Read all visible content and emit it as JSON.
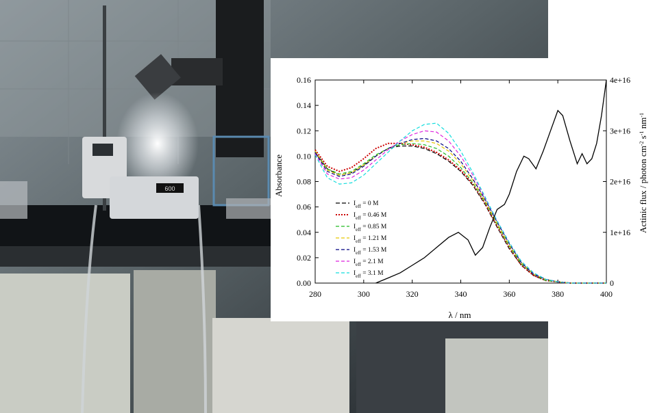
{
  "photo": {
    "display_label": "600"
  },
  "chart_data": {
    "type": "line",
    "xlabel": "λ / nm",
    "ylabel": "Absorbance",
    "y2label": "Actinic flux / photon cm-2 s-1 nm-1",
    "xlim": [
      280,
      400
    ],
    "ylim": [
      0,
      0.16
    ],
    "y2lim": [
      0,
      4e+16
    ],
    "x_ticks": [
      "280",
      "300",
      "320",
      "340",
      "360",
      "380",
      "400"
    ],
    "y_ticks": [
      "0.00",
      "0.02",
      "0.04",
      "0.06",
      "0.08",
      "0.10",
      "0.12",
      "0.14",
      "0.16"
    ],
    "y2_ticks": [
      "0",
      "1e+16",
      "2e+16",
      "3e+16",
      "4e+16"
    ],
    "x": [
      280,
      285,
      290,
      295,
      300,
      305,
      310,
      315,
      320,
      325,
      330,
      335,
      340,
      345,
      350,
      355,
      360,
      365,
      370,
      375,
      380,
      385,
      390,
      395,
      400
    ],
    "series": [
      {
        "name": "Ieff = 0 M",
        "color": "#000000",
        "dash": "6 3",
        "axis": "left",
        "values": [
          0.103,
          0.09,
          0.085,
          0.087,
          0.093,
          0.1,
          0.106,
          0.108,
          0.108,
          0.106,
          0.102,
          0.096,
          0.088,
          0.077,
          0.062,
          0.044,
          0.027,
          0.014,
          0.006,
          0.002,
          0.001,
          0.0,
          0.0,
          0.0,
          0.0
        ]
      },
      {
        "name": "Ieff = 0.46 M",
        "color": "#cc0000",
        "dash": "2 2",
        "axis": "left",
        "values": [
          0.105,
          0.092,
          0.088,
          0.091,
          0.098,
          0.106,
          0.11,
          0.11,
          0.109,
          0.107,
          0.103,
          0.097,
          0.089,
          0.078,
          0.063,
          0.045,
          0.028,
          0.014,
          0.006,
          0.002,
          0.001,
          0.0,
          0.0,
          0.0,
          0.0
        ]
      },
      {
        "name": "Ieff = 0.85 M",
        "color": "#22bb22",
        "dash": "5 3",
        "axis": "left",
        "values": [
          0.104,
          0.09,
          0.086,
          0.088,
          0.094,
          0.101,
          0.106,
          0.109,
          0.11,
          0.109,
          0.106,
          0.1,
          0.091,
          0.079,
          0.064,
          0.046,
          0.029,
          0.015,
          0.007,
          0.002,
          0.001,
          0.0,
          0.0,
          0.0,
          0.0
        ]
      },
      {
        "name": "Ieff = 1.21 M",
        "color": "#e6c800",
        "dash": "5 3",
        "axis": "left",
        "values": [
          0.104,
          0.089,
          0.085,
          0.087,
          0.093,
          0.1,
          0.106,
          0.11,
          0.112,
          0.112,
          0.11,
          0.104,
          0.094,
          0.081,
          0.065,
          0.047,
          0.03,
          0.016,
          0.007,
          0.003,
          0.001,
          0.0,
          0.0,
          0.0,
          0.0
        ]
      },
      {
        "name": "Ieff = 1.53 M",
        "color": "#000080",
        "dash": "5 3",
        "axis": "left",
        "values": [
          0.103,
          0.088,
          0.084,
          0.086,
          0.092,
          0.1,
          0.106,
          0.11,
          0.113,
          0.114,
          0.112,
          0.106,
          0.096,
          0.082,
          0.066,
          0.048,
          0.031,
          0.016,
          0.007,
          0.003,
          0.001,
          0.0,
          0.0,
          0.0,
          0.0
        ]
      },
      {
        "name": "Ieff = 2.1 M",
        "color": "#dd22dd",
        "dash": "5 3",
        "axis": "left",
        "values": [
          0.102,
          0.086,
          0.082,
          0.083,
          0.089,
          0.097,
          0.105,
          0.112,
          0.117,
          0.12,
          0.119,
          0.112,
          0.1,
          0.085,
          0.067,
          0.049,
          0.032,
          0.017,
          0.008,
          0.003,
          0.001,
          0.0,
          0.0,
          0.0,
          0.0
        ]
      },
      {
        "name": "Ieff = 3.1 M",
        "color": "#11dddd",
        "dash": "5 3",
        "axis": "left",
        "values": [
          0.101,
          0.083,
          0.078,
          0.079,
          0.085,
          0.094,
          0.103,
          0.112,
          0.12,
          0.125,
          0.126,
          0.118,
          0.104,
          0.087,
          0.068,
          0.049,
          0.032,
          0.017,
          0.008,
          0.003,
          0.001,
          0.0,
          0.0,
          0.0,
          0.0
        ]
      }
    ],
    "flux": {
      "name": "Actinic flux",
      "color": "#000000",
      "axis": "right",
      "x": [
        305,
        310,
        315,
        320,
        325,
        330,
        335,
        339,
        343,
        346,
        349,
        352,
        355,
        358,
        360,
        363,
        366,
        368,
        371,
        374,
        377,
        380,
        382,
        385,
        388,
        390,
        392,
        394,
        396,
        398,
        400
      ],
      "values": [
        0.0,
        1000000000000000.0,
        2000000000000000.0,
        3500000000000000.0,
        5000000000000000.0,
        7000000000000000.0,
        9000000000000000.0,
        1e+16,
        8500000000000000.0,
        5500000000000000.0,
        7000000000000000.0,
        1.1e+16,
        1.45e+16,
        1.55e+16,
        1.75e+16,
        2.2e+16,
        2.5e+16,
        2.45e+16,
        2.25e+16,
        2.6e+16,
        3e+16,
        3.4e+16,
        3.3e+16,
        2.8e+16,
        2.35e+16,
        2.55e+16,
        2.35e+16,
        2.45e+16,
        2.75e+16,
        3.3e+16,
        4e+16
      ]
    }
  }
}
